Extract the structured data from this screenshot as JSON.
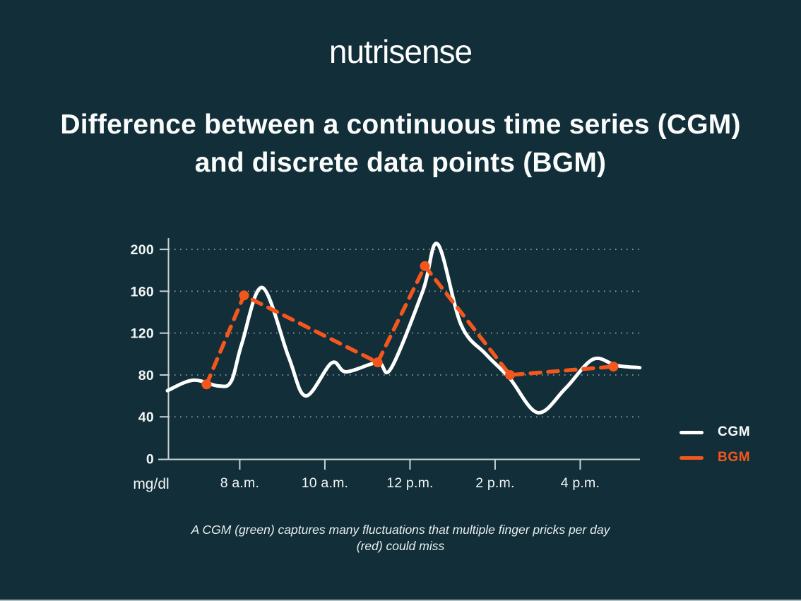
{
  "page": {
    "background_color": "#122E38",
    "bottom_strip_color": "#AFBFBF"
  },
  "logo": {
    "text": "nutrisense"
  },
  "title": {
    "line1": "Difference between a continuous time series (CGM)",
    "line2": "and discrete data points (BGM)"
  },
  "chart_data": {
    "type": "line",
    "title": "",
    "xlabel": "",
    "ylabel": "mg/dl",
    "ylim": [
      0,
      210
    ],
    "x_range_hours": [
      6.3,
      17.4
    ],
    "yticks": [
      0,
      40,
      80,
      120,
      160,
      200
    ],
    "xticks": [
      {
        "hour": 8,
        "label": "8 a.m."
      },
      {
        "hour": 10,
        "label": "10 a.m."
      },
      {
        "hour": 12,
        "label": "12 p.m."
      },
      {
        "hour": 14,
        "label": "2 p.m."
      },
      {
        "hour": 16,
        "label": "4 p.m."
      }
    ],
    "grid": {
      "horizontal_dotted": true,
      "color": "rgba(255,255,255,0.55)"
    },
    "axis_color": "#C8D2D4",
    "tick_label_color": "#F2F6F6",
    "legend_position": "right-bottom",
    "series": [
      {
        "name": "CGM",
        "color": "#FFFFFF",
        "style": "solid",
        "points_hour_value": [
          [
            6.3,
            65
          ],
          [
            6.9,
            75
          ],
          [
            7.5,
            69.5
          ],
          [
            7.8,
            74
          ],
          [
            8.05,
            110
          ],
          [
            8.53,
            163.5
          ],
          [
            9.15,
            97
          ],
          [
            9.55,
            60
          ],
          [
            10.16,
            91.5
          ],
          [
            10.5,
            83
          ],
          [
            11.24,
            92
          ],
          [
            11.55,
            86
          ],
          [
            12.3,
            160
          ],
          [
            12.65,
            205
          ],
          [
            13.2,
            128
          ],
          [
            13.78,
            100
          ],
          [
            14.34,
            77
          ],
          [
            15.0,
            44
          ],
          [
            15.65,
            67
          ],
          [
            16.3,
            95
          ],
          [
            16.85,
            89
          ],
          [
            17.4,
            87
          ]
        ]
      },
      {
        "name": "BGM",
        "color": "#F4571D",
        "style": "dashed",
        "markers": true,
        "points_hour_value": [
          [
            7.22,
            71
          ],
          [
            8.1,
            156
          ],
          [
            11.24,
            92
          ],
          [
            12.35,
            184
          ],
          [
            14.35,
            80
          ],
          [
            16.78,
            88
          ]
        ]
      }
    ]
  },
  "caption": {
    "line1": "A CGM (green) captures many fluctuations that multiple finger pricks per day",
    "line2": "(red) could miss"
  }
}
